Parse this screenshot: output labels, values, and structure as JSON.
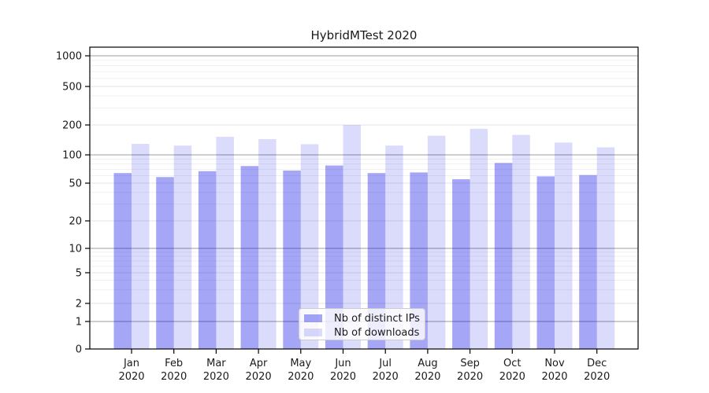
{
  "chart_data": {
    "type": "bar",
    "title": "HybridMTest 2020",
    "categories": [
      "Jan",
      "Feb",
      "Mar",
      "Apr",
      "May",
      "Jun",
      "Jul",
      "Aug",
      "Sep",
      "Oct",
      "Nov",
      "Dec"
    ],
    "category_year_suffix": "2020",
    "series": [
      {
        "name": "Nb of distinct IPs",
        "color": "rgba(0,0,230,0.35)",
        "values": [
          64,
          58,
          67,
          76,
          68,
          77,
          64,
          65,
          55,
          82,
          59,
          61
        ]
      },
      {
        "name": "Nb of downloads",
        "color": "rgba(0,0,230,0.14)",
        "values": [
          129,
          124,
          152,
          144,
          128,
          200,
          124,
          156,
          183,
          159,
          133,
          119
        ]
      }
    ],
    "yscale": "log (with 0 baseline)",
    "ylim": [
      0,
      1200
    ],
    "yticks": [
      0,
      1,
      2,
      5,
      10,
      20,
      50,
      100,
      200,
      500,
      1000
    ],
    "ytick_labels": [
      "0",
      "1",
      "2",
      "5",
      "10",
      "20",
      "50",
      "100",
      "200",
      "500",
      "1000"
    ],
    "grid": true,
    "legend_position": "lower center"
  },
  "legend": {
    "items": [
      {
        "label": "Nb of distinct IPs"
      },
      {
        "label": "Nb of downloads"
      }
    ]
  },
  "colors": {
    "grid_major": "#b0b0b0",
    "grid_labeled": "#e3e3e3",
    "grid_minor": "#f0f0f0",
    "axis": "#000000",
    "text": "#1a1a1a",
    "legend_bg": "rgba(255,255,255,0.8)",
    "legend_border": "#cccccc"
  }
}
